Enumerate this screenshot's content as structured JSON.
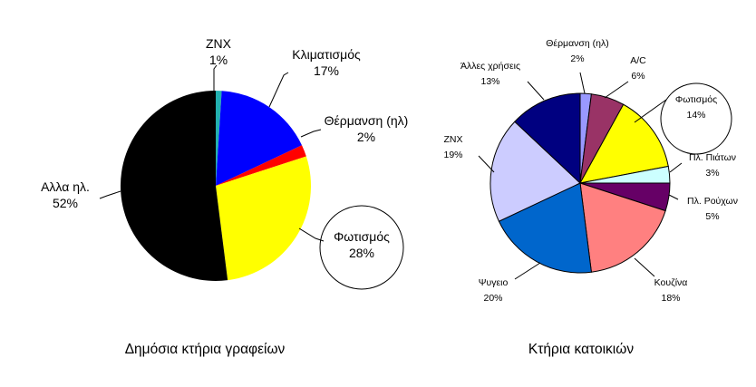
{
  "chart_data": [
    {
      "type": "pie",
      "title": "Δημόσια κτήρια γραφείων",
      "slices": [
        {
          "label": "ZNX",
          "pct_label": "1%",
          "value": 1,
          "color": "#22b0b0"
        },
        {
          "label": "Κλιματισμός",
          "pct_label": "17%",
          "value": 17,
          "color": "#0000ff"
        },
        {
          "label": "Θέρμανση (ηλ)",
          "pct_label": "2%",
          "value": 2,
          "color": "#ff0000"
        },
        {
          "label": "Φωτισμός",
          "pct_label": "28%",
          "value": 28,
          "color": "#ffff00"
        },
        {
          "label": "Αλλα ηλ.",
          "pct_label": "52%",
          "value": 52,
          "color": "#000000"
        }
      ]
    },
    {
      "type": "pie",
      "title": "Κτήρια κατοικιών",
      "slices": [
        {
          "label": "Θέρμανση (ηλ)",
          "pct_label": "2%",
          "value": 2,
          "color": "#9999ff"
        },
        {
          "label": "A/C",
          "pct_label": "6%",
          "value": 6,
          "color": "#993366"
        },
        {
          "label": "Φωτισμός",
          "pct_label": "14%",
          "value": 14,
          "color": "#ffff00"
        },
        {
          "label": "Πλ. Πιάτων",
          "pct_label": "3%",
          "value": 3,
          "color": "#ccffff"
        },
        {
          "label": "Πλ. Ρούχων",
          "pct_label": "5%",
          "value": 5,
          "color": "#660066"
        },
        {
          "label": "Κουζίνα",
          "pct_label": "18%",
          "value": 18,
          "color": "#ff8080"
        },
        {
          "label": "Ψυγειο",
          "pct_label": "20%",
          "value": 20,
          "color": "#0066cc"
        },
        {
          "label": "ZNX",
          "pct_label": "19%",
          "value": 19,
          "color": "#ccccff"
        },
        {
          "label": "Άλλες χρήσεις",
          "pct_label": "13%",
          "value": 13,
          "color": "#000080"
        }
      ]
    }
  ]
}
